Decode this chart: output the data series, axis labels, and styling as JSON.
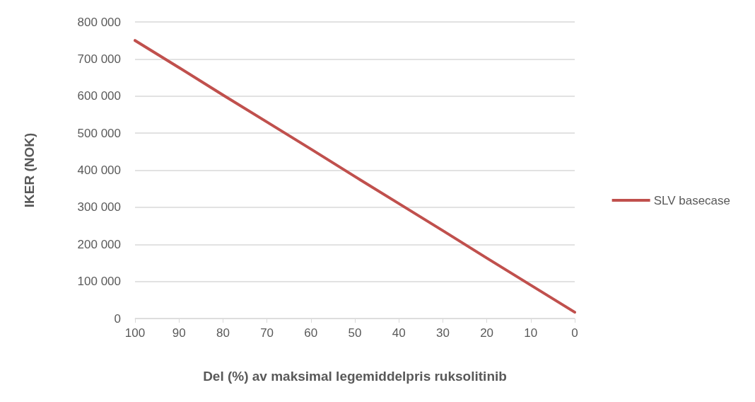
{
  "chart_data": {
    "type": "line",
    "xlabel": "Del (%) av maksimal legemiddelpris ruksolitinib",
    "ylabel": "IKER (NOK)",
    "x": [
      100,
      90,
      80,
      70,
      60,
      50,
      40,
      30,
      20,
      10,
      0
    ],
    "series": [
      {
        "name": "SLV basecase",
        "color": "#c0504d",
        "values": [
          750000,
          677000,
          603000,
          530000,
          457000,
          383000,
          310000,
          237000,
          163000,
          90000,
          17000
        ]
      }
    ],
    "xlim": [
      100,
      0
    ],
    "xticks": [
      100,
      90,
      80,
      70,
      60,
      50,
      40,
      30,
      20,
      10,
      0
    ],
    "ylim": [
      0,
      800000
    ],
    "yticks": [
      {
        "value": 0,
        "label": "0"
      },
      {
        "value": 100000,
        "label": "100 000"
      },
      {
        "value": 200000,
        "label": "200 000"
      },
      {
        "value": 300000,
        "label": "300 000"
      },
      {
        "value": 400000,
        "label": "400 000"
      },
      {
        "value": 500000,
        "label": "500 000"
      },
      {
        "value": 600000,
        "label": "600 000"
      },
      {
        "value": 700000,
        "label": "700 000"
      },
      {
        "value": 800000,
        "label": "800 000"
      }
    ],
    "grid": "y",
    "legend": "right",
    "marker": "none",
    "line_style": "solid"
  }
}
